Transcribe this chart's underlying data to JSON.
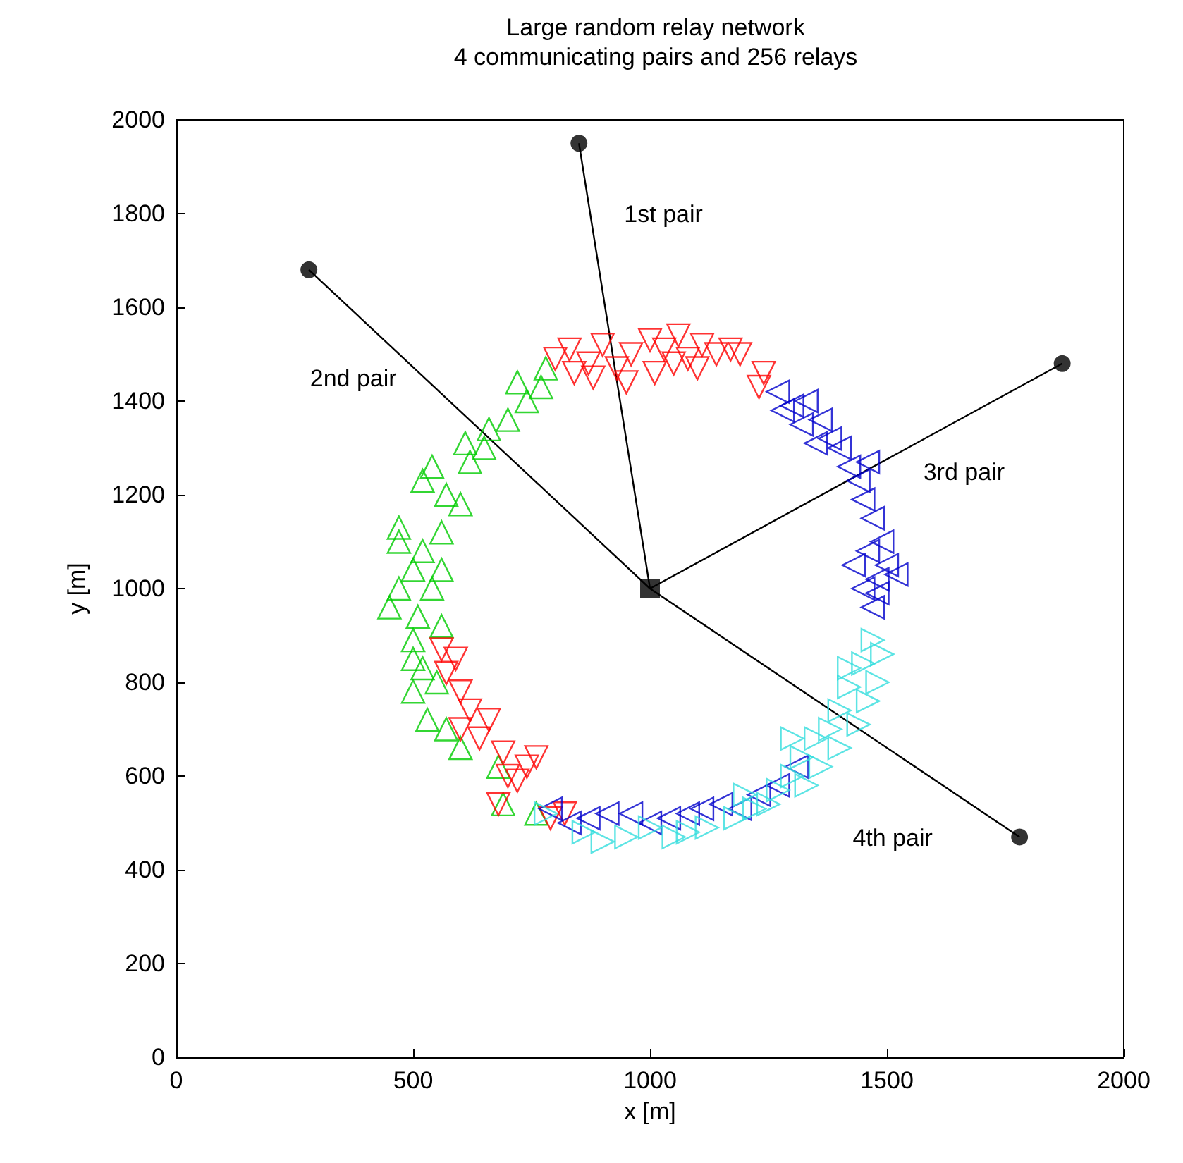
{
  "chart_data": {
    "type": "scatter",
    "title": "Large random relay network",
    "subtitle": "4 communicating pairs and 256 relays",
    "xlabel": "x [m]",
    "ylabel": "y [m]",
    "xlim": [
      0,
      2000
    ],
    "xticks": [
      0,
      500,
      1000,
      1500,
      2000
    ],
    "ylim": [
      0,
      2000
    ],
    "yticks": [
      0,
      200,
      400,
      600,
      800,
      1000,
      1200,
      1400,
      1600,
      1800,
      2000
    ],
    "grid": false,
    "legend": false,
    "series": [
      {
        "type": "line",
        "name": "1st pair",
        "color": "#000000",
        "marker": "none",
        "x": [
          1000,
          850
        ],
        "values": [
          1000,
          1950
        ]
      },
      {
        "type": "line",
        "name": "2nd pair",
        "color": "#000000",
        "marker": "none",
        "x": [
          1000,
          280
        ],
        "values": [
          1000,
          1680
        ]
      },
      {
        "type": "line",
        "name": "3rd pair",
        "color": "#000000",
        "marker": "none",
        "x": [
          1000,
          1870
        ],
        "values": [
          1000,
          1480
        ]
      },
      {
        "type": "line",
        "name": "4th pair",
        "color": "#000000",
        "marker": "none",
        "x": [
          1000,
          1780
        ],
        "values": [
          1000,
          470
        ]
      },
      {
        "color": "#00cc00",
        "marker": "triangle",
        "x": [
          780,
          770,
          740,
          720,
          660,
          650,
          620,
          540,
          520,
          570,
          600,
          560,
          470,
          520,
          500,
          540,
          470,
          450,
          510,
          560,
          500,
          520,
          550,
          500,
          530,
          570,
          600,
          680,
          690,
          760,
          470,
          560,
          610,
          700,
          500
        ],
        "values": [
          1470,
          1430,
          1400,
          1440,
          1340,
          1300,
          1270,
          1260,
          1230,
          1200,
          1180,
          1120,
          1100,
          1080,
          1040,
          1000,
          1000,
          960,
          940,
          920,
          890,
          830,
          800,
          780,
          720,
          700,
          660,
          620,
          540,
          520,
          1130,
          1040,
          1310,
          1360,
          850
        ]
      },
      {
        "color": "#ff0000",
        "marker": "triangle-down",
        "x": [
          800,
          830,
          870,
          900,
          930,
          960,
          1000,
          1030,
          1060,
          1080,
          1110,
          1140,
          1170,
          880,
          950,
          1010,
          1100,
          1190,
          840,
          1050,
          1230,
          1240,
          560,
          590,
          570,
          600,
          620,
          660,
          600,
          640,
          690,
          740,
          760,
          700,
          680,
          820,
          790,
          720
        ],
        "values": [
          1490,
          1510,
          1480,
          1520,
          1470,
          1500,
          1530,
          1510,
          1540,
          1490,
          1520,
          1500,
          1510,
          1450,
          1440,
          1460,
          1470,
          1500,
          1460,
          1480,
          1430,
          1460,
          870,
          850,
          820,
          780,
          740,
          720,
          700,
          680,
          650,
          620,
          640,
          600,
          540,
          520,
          510,
          590
        ]
      },
      {
        "color": "#0000cc",
        "marker": "triangle-left",
        "x": [
          1270,
          1300,
          1330,
          1320,
          1360,
          1380,
          1400,
          1420,
          1440,
          1460,
          1450,
          1470,
          1490,
          1460,
          1500,
          1480,
          1450,
          1520,
          1430,
          1470,
          1480,
          1350,
          1280,
          790,
          830,
          870,
          910,
          960,
          1000,
          1040,
          1080,
          1110,
          1150,
          1190,
          1230,
          1270,
          1310
        ],
        "values": [
          1420,
          1390,
          1400,
          1350,
          1360,
          1320,
          1300,
          1260,
          1230,
          1270,
          1190,
          1150,
          1100,
          1080,
          1050,
          1020,
          1000,
          1030,
          1050,
          960,
          990,
          1310,
          1380,
          530,
          500,
          510,
          520,
          520,
          500,
          510,
          520,
          530,
          540,
          530,
          560,
          580,
          620
        ]
      },
      {
        "color": "#33dddd",
        "marker": "triangle-right",
        "x": [
          1470,
          1490,
          1450,
          1480,
          1420,
          1460,
          1400,
          1440,
          1380,
          1350,
          1400,
          1320,
          1360,
          1300,
          1330,
          1270,
          1250,
          1220,
          1180,
          1120,
          1080,
          1050,
          1000,
          950,
          900,
          860,
          780,
          1200,
          1300,
          1420
        ],
        "values": [
          890,
          860,
          840,
          800,
          790,
          760,
          740,
          710,
          700,
          680,
          660,
          640,
          620,
          600,
          580,
          570,
          540,
          530,
          510,
          490,
          480,
          470,
          490,
          470,
          460,
          480,
          520,
          560,
          680,
          830
        ]
      },
      {
        "color": "#000000",
        "marker": "circle",
        "x": [
          850,
          280,
          1870,
          1780
        ],
        "values": [
          1950,
          1680,
          1480,
          470
        ]
      },
      {
        "color": "#000000",
        "marker": "square",
        "x": [
          1000
        ],
        "values": [
          1000
        ]
      }
    ]
  }
}
